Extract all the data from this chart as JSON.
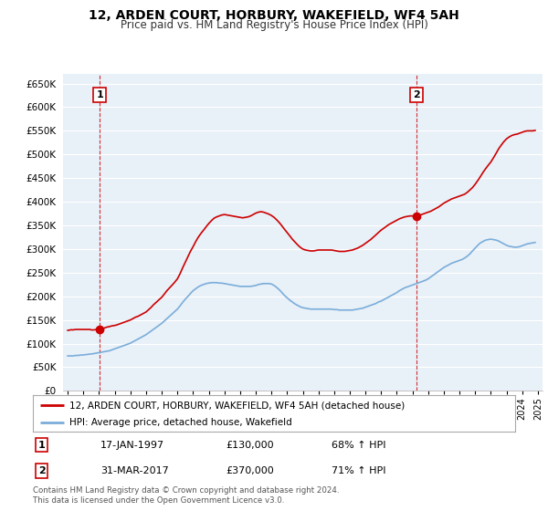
{
  "title": "12, ARDEN COURT, HORBURY, WAKEFIELD, WF4 5AH",
  "subtitle": "Price paid vs. HM Land Registry's House Price Index (HPI)",
  "ylim": [
    0,
    670000
  ],
  "yticks": [
    0,
    50000,
    100000,
    150000,
    200000,
    250000,
    300000,
    350000,
    400000,
    450000,
    500000,
    550000,
    600000,
    650000
  ],
  "xlim_start": 1994.7,
  "xlim_end": 2025.3,
  "point1_x": 1997.04,
  "point1_y": 130000,
  "point2_x": 2017.25,
  "point2_y": 370000,
  "point1_date": "17-JAN-1997",
  "point1_price": "£130,000",
  "point1_hpi": "68% ↑ HPI",
  "point2_date": "31-MAR-2017",
  "point2_price": "£370,000",
  "point2_hpi": "71% ↑ HPI",
  "red_line_color": "#cc0000",
  "blue_line_color": "#7aadda",
  "plot_bg_color": "#e8f0f8",
  "background_color": "#ffffff",
  "grid_color": "#ffffff",
  "legend_label_red": "12, ARDEN COURT, HORBURY, WAKEFIELD, WF4 5AH (detached house)",
  "legend_label_blue": "HPI: Average price, detached house, Wakefield",
  "footnote": "Contains HM Land Registry data © Crown copyright and database right 2024.\nThis data is licensed under the Open Government Licence v3.0.",
  "red_x": [
    1995.0,
    1995.08,
    1995.17,
    1995.25,
    1995.33,
    1995.42,
    1995.5,
    1995.58,
    1995.67,
    1995.75,
    1995.83,
    1995.92,
    1996.0,
    1996.08,
    1996.17,
    1996.25,
    1996.33,
    1996.42,
    1996.5,
    1996.58,
    1996.67,
    1996.75,
    1996.83,
    1996.92,
    1997.04,
    1997.17,
    1997.25,
    1997.33,
    1997.42,
    1997.5,
    1997.58,
    1997.67,
    1997.75,
    1997.83,
    1997.92,
    1998.0,
    1998.08,
    1998.17,
    1998.25,
    1998.33,
    1998.42,
    1998.5,
    1998.58,
    1998.67,
    1998.75,
    1998.83,
    1998.92,
    1999.0,
    1999.17,
    1999.33,
    1999.5,
    1999.67,
    1999.83,
    2000.0,
    2000.17,
    2000.33,
    2000.5,
    2000.67,
    2000.83,
    2001.0,
    2001.17,
    2001.33,
    2001.5,
    2001.67,
    2001.83,
    2002.0,
    2002.17,
    2002.33,
    2002.5,
    2002.67,
    2002.83,
    2003.0,
    2003.17,
    2003.33,
    2003.5,
    2003.67,
    2003.83,
    2004.0,
    2004.17,
    2004.33,
    2004.5,
    2004.67,
    2004.83,
    2005.0,
    2005.17,
    2005.33,
    2005.5,
    2005.67,
    2005.83,
    2006.0,
    2006.17,
    2006.33,
    2006.5,
    2006.67,
    2006.83,
    2007.0,
    2007.17,
    2007.33,
    2007.5,
    2007.67,
    2007.83,
    2008.0,
    2008.17,
    2008.33,
    2008.5,
    2008.67,
    2008.83,
    2009.0,
    2009.17,
    2009.33,
    2009.5,
    2009.67,
    2009.83,
    2010.0,
    2010.17,
    2010.33,
    2010.5,
    2010.67,
    2010.83,
    2011.0,
    2011.17,
    2011.33,
    2011.5,
    2011.67,
    2011.83,
    2012.0,
    2012.17,
    2012.33,
    2012.5,
    2012.67,
    2012.83,
    2013.0,
    2013.17,
    2013.33,
    2013.5,
    2013.67,
    2013.83,
    2014.0,
    2014.17,
    2014.33,
    2014.5,
    2014.67,
    2014.83,
    2015.0,
    2015.17,
    2015.33,
    2015.5,
    2015.67,
    2015.83,
    2016.0,
    2016.17,
    2016.33,
    2016.5,
    2016.67,
    2016.83,
    2017.0,
    2017.17,
    2017.25,
    2017.42,
    2017.5,
    2017.67,
    2017.83,
    2018.0,
    2018.17,
    2018.33,
    2018.5,
    2018.67,
    2018.83,
    2019.0,
    2019.17,
    2019.33,
    2019.5,
    2019.67,
    2019.83,
    2020.0,
    2020.17,
    2020.33,
    2020.5,
    2020.67,
    2020.83,
    2021.0,
    2021.17,
    2021.33,
    2021.5,
    2021.67,
    2021.83,
    2022.0,
    2022.17,
    2022.33,
    2022.5,
    2022.67,
    2022.83,
    2023.0,
    2023.17,
    2023.33,
    2023.5,
    2023.67,
    2023.83,
    2024.0,
    2024.17,
    2024.33,
    2024.5,
    2024.67,
    2024.83
  ],
  "red_y": [
    128000,
    128500,
    129000,
    129500,
    129000,
    129500,
    130000,
    130000,
    130000,
    130000,
    130000,
    130000,
    130000,
    130000,
    130000,
    130000,
    130000,
    130000,
    129000,
    129000,
    129000,
    129500,
    130000,
    130000,
    130000,
    131000,
    132000,
    133000,
    134000,
    135000,
    135500,
    136000,
    137000,
    137500,
    138000,
    138500,
    139000,
    140000,
    141000,
    142000,
    143000,
    144000,
    145000,
    146000,
    147000,
    148000,
    149000,
    150000,
    153000,
    156000,
    158000,
    161000,
    164000,
    167000,
    172000,
    177000,
    183000,
    188000,
    193000,
    198000,
    205000,
    212000,
    218000,
    224000,
    230000,
    237000,
    248000,
    260000,
    272000,
    284000,
    295000,
    305000,
    316000,
    325000,
    333000,
    340000,
    347000,
    354000,
    360000,
    365000,
    368000,
    370000,
    372000,
    373000,
    372000,
    371000,
    370000,
    369000,
    368000,
    367000,
    366000,
    367000,
    368000,
    370000,
    373000,
    376000,
    378000,
    379000,
    378000,
    376000,
    374000,
    371000,
    367000,
    362000,
    356000,
    349000,
    342000,
    335000,
    328000,
    321000,
    315000,
    309000,
    304000,
    300000,
    298000,
    297000,
    296000,
    296000,
    297000,
    298000,
    298000,
    298000,
    298000,
    298000,
    298000,
    297000,
    296000,
    295000,
    295000,
    295000,
    296000,
    297000,
    298000,
    300000,
    302000,
    305000,
    308000,
    312000,
    316000,
    320000,
    325000,
    330000,
    335000,
    340000,
    344000,
    348000,
    352000,
    355000,
    358000,
    361000,
    364000,
    366000,
    368000,
    369000,
    370000,
    370000,
    370500,
    370000,
    371000,
    372000,
    374000,
    376000,
    378000,
    380000,
    383000,
    386000,
    389000,
    393000,
    397000,
    400000,
    403000,
    406000,
    408000,
    410000,
    412000,
    414000,
    416000,
    420000,
    425000,
    430000,
    437000,
    445000,
    453000,
    462000,
    470000,
    477000,
    484000,
    493000,
    502000,
    512000,
    520000,
    527000,
    533000,
    537000,
    540000,
    542000,
    543000,
    545000,
    547000,
    549000,
    550000,
    550000,
    550000,
    551000
  ],
  "blue_x": [
    1995.0,
    1995.08,
    1995.17,
    1995.25,
    1995.33,
    1995.42,
    1995.5,
    1995.58,
    1995.67,
    1995.75,
    1995.83,
    1995.92,
    1996.0,
    1996.08,
    1996.17,
    1996.25,
    1996.33,
    1996.42,
    1996.5,
    1996.58,
    1996.67,
    1996.75,
    1996.83,
    1996.92,
    1997.0,
    1997.17,
    1997.33,
    1997.5,
    1997.67,
    1997.83,
    1998.0,
    1998.17,
    1998.33,
    1998.5,
    1998.67,
    1998.83,
    1999.0,
    1999.17,
    1999.33,
    1999.5,
    1999.67,
    1999.83,
    2000.0,
    2000.17,
    2000.33,
    2000.5,
    2000.67,
    2000.83,
    2001.0,
    2001.17,
    2001.33,
    2001.5,
    2001.67,
    2001.83,
    2002.0,
    2002.17,
    2002.33,
    2002.5,
    2002.67,
    2002.83,
    2003.0,
    2003.17,
    2003.33,
    2003.5,
    2003.67,
    2003.83,
    2004.0,
    2004.17,
    2004.33,
    2004.5,
    2004.67,
    2004.83,
    2005.0,
    2005.17,
    2005.33,
    2005.5,
    2005.67,
    2005.83,
    2006.0,
    2006.17,
    2006.33,
    2006.5,
    2006.67,
    2006.83,
    2007.0,
    2007.17,
    2007.33,
    2007.5,
    2007.67,
    2007.83,
    2008.0,
    2008.17,
    2008.33,
    2008.5,
    2008.67,
    2008.83,
    2009.0,
    2009.17,
    2009.33,
    2009.5,
    2009.67,
    2009.83,
    2010.0,
    2010.17,
    2010.33,
    2010.5,
    2010.67,
    2010.83,
    2011.0,
    2011.17,
    2011.33,
    2011.5,
    2011.67,
    2011.83,
    2012.0,
    2012.17,
    2012.33,
    2012.5,
    2012.67,
    2012.83,
    2013.0,
    2013.17,
    2013.33,
    2013.5,
    2013.67,
    2013.83,
    2014.0,
    2014.17,
    2014.33,
    2014.5,
    2014.67,
    2014.83,
    2015.0,
    2015.17,
    2015.33,
    2015.5,
    2015.67,
    2015.83,
    2016.0,
    2016.17,
    2016.33,
    2016.5,
    2016.67,
    2016.83,
    2017.0,
    2017.17,
    2017.33,
    2017.5,
    2017.67,
    2017.83,
    2018.0,
    2018.17,
    2018.33,
    2018.5,
    2018.67,
    2018.83,
    2019.0,
    2019.17,
    2019.33,
    2019.5,
    2019.67,
    2019.83,
    2020.0,
    2020.17,
    2020.33,
    2020.5,
    2020.67,
    2020.83,
    2021.0,
    2021.17,
    2021.33,
    2021.5,
    2021.67,
    2021.83,
    2022.0,
    2022.17,
    2022.33,
    2022.5,
    2022.67,
    2022.83,
    2023.0,
    2023.17,
    2023.33,
    2023.5,
    2023.67,
    2023.83,
    2024.0,
    2024.17,
    2024.33,
    2024.5,
    2024.67,
    2024.83
  ],
  "blue_y": [
    74000,
    74000,
    74000,
    74000,
    74000,
    74500,
    75000,
    75000,
    75000,
    75500,
    76000,
    76000,
    76000,
    76500,
    77000,
    77000,
    77500,
    78000,
    78000,
    78500,
    79000,
    79500,
    80000,
    80500,
    81000,
    82000,
    83000,
    84000,
    85000,
    87000,
    89000,
    91000,
    93000,
    95000,
    97000,
    99000,
    101000,
    104000,
    107000,
    110000,
    113000,
    116000,
    119000,
    123000,
    127000,
    131000,
    135000,
    139000,
    143000,
    148000,
    153000,
    158000,
    163000,
    168000,
    173000,
    180000,
    187000,
    194000,
    200000,
    206000,
    212000,
    216000,
    220000,
    223000,
    225000,
    227000,
    228000,
    229000,
    229000,
    229000,
    228000,
    228000,
    227000,
    226000,
    225000,
    224000,
    223000,
    222000,
    221000,
    221000,
    221000,
    221000,
    221000,
    222000,
    223000,
    225000,
    226000,
    227000,
    227000,
    227000,
    226000,
    223000,
    219000,
    214000,
    208000,
    202000,
    197000,
    192000,
    188000,
    184000,
    181000,
    178000,
    176000,
    175000,
    174000,
    173000,
    173000,
    173000,
    173000,
    173000,
    173000,
    173000,
    173000,
    173000,
    172000,
    172000,
    171000,
    171000,
    171000,
    171000,
    171000,
    171000,
    172000,
    173000,
    174000,
    175000,
    177000,
    179000,
    181000,
    183000,
    185000,
    188000,
    190000,
    193000,
    196000,
    199000,
    202000,
    205000,
    208000,
    212000,
    215000,
    218000,
    220000,
    222000,
    224000,
    226000,
    228000,
    230000,
    232000,
    234000,
    237000,
    241000,
    245000,
    249000,
    253000,
    257000,
    261000,
    264000,
    267000,
    270000,
    272000,
    274000,
    276000,
    278000,
    281000,
    285000,
    290000,
    296000,
    302000,
    308000,
    313000,
    316000,
    319000,
    320000,
    321000,
    320000,
    319000,
    317000,
    314000,
    311000,
    308000,
    306000,
    305000,
    304000,
    304000,
    305000,
    307000,
    309000,
    311000,
    312000,
    313000,
    314000
  ]
}
